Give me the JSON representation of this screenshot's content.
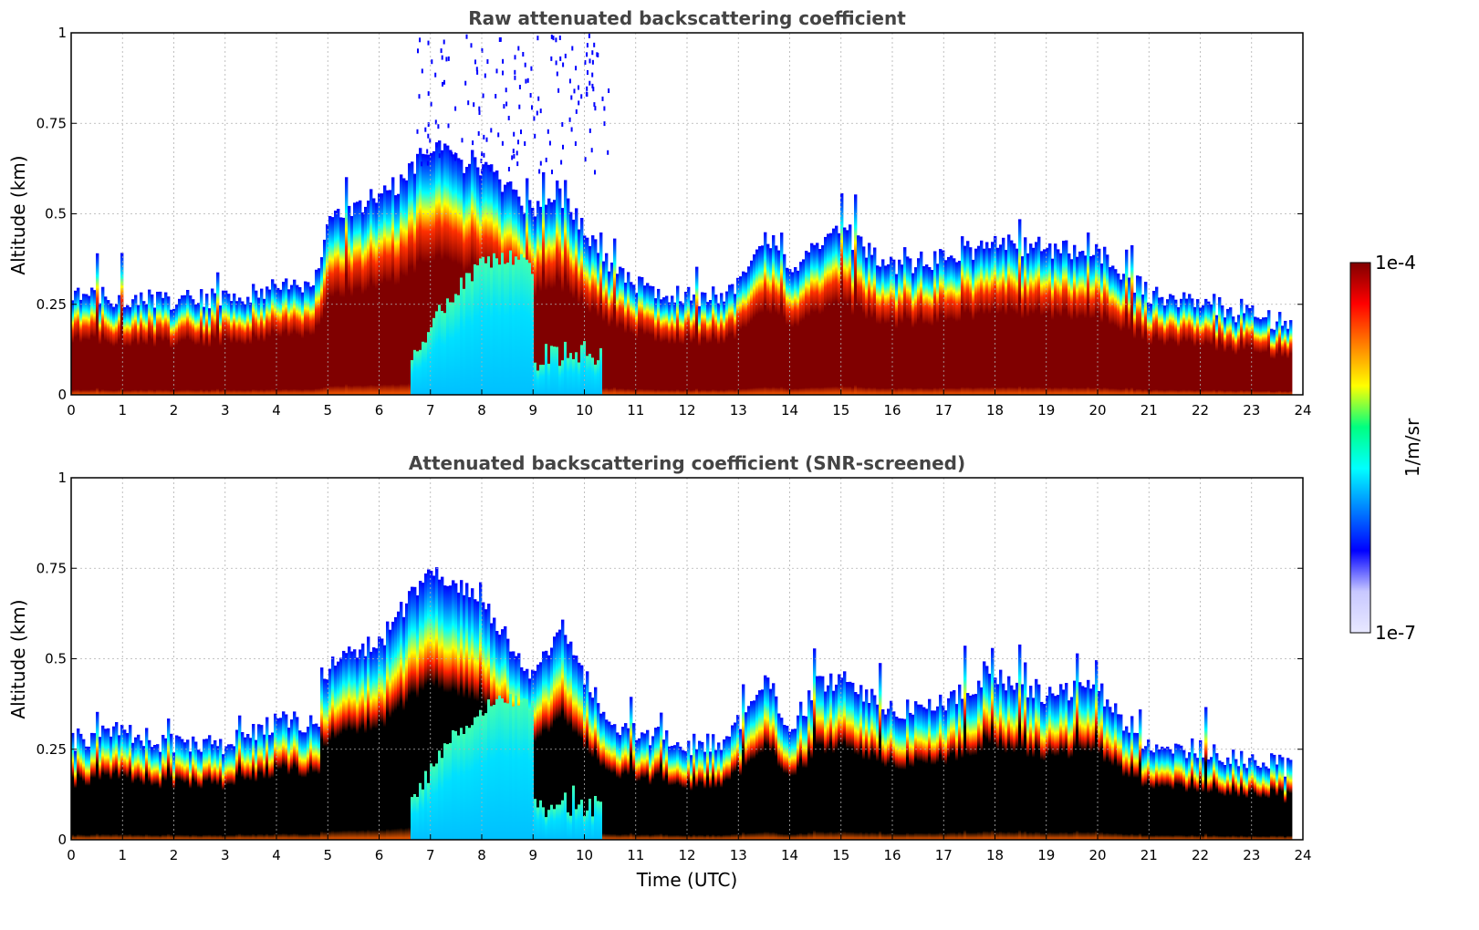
{
  "figure": {
    "xlabel": "Time (UTC)",
    "colorbar": {
      "label": "1/m/sr",
      "max_label": "1e-4",
      "min_label": "1e-7",
      "scale": "log",
      "range": [
        1e-07,
        0.0001
      ],
      "colormap": [
        "#e8e8ff",
        "#c8c8ff",
        "#0000ff",
        "#0080ff",
        "#00ffff",
        "#00ff80",
        "#ffff00",
        "#ff8000",
        "#ff0000",
        "#800000"
      ]
    }
  },
  "chart_data": [
    {
      "type": "heatmap",
      "title": "Raw attenuated backscattering coefficient",
      "xlabel": "",
      "ylabel": "Altitude (km)",
      "xlim": [
        0,
        24
      ],
      "ylim": [
        0,
        1
      ],
      "x_ticks": [
        "0",
        "1",
        "2",
        "3",
        "4",
        "5",
        "6",
        "7",
        "8",
        "9",
        "10",
        "11",
        "12",
        "13",
        "14",
        "15",
        "16",
        "17",
        "18",
        "19",
        "20",
        "21",
        "22",
        "23",
        "24"
      ],
      "y_ticks": [
        "0",
        "0.25",
        "0.5",
        "0.75",
        "1"
      ],
      "grid": true,
      "data_end_hour": 23.75,
      "boundary_layer_top_km": {
        "hours": [
          0,
          1,
          2,
          3,
          4,
          4.8,
          5,
          6,
          6.5,
          7,
          7.5,
          8,
          8.5,
          9,
          9.5,
          10,
          10.5,
          11,
          12,
          12.8,
          13.5,
          14,
          14.5,
          15,
          16,
          17,
          18,
          19,
          20,
          20.5,
          21,
          22,
          23,
          23.75
        ],
        "values": [
          0.27,
          0.27,
          0.26,
          0.27,
          0.3,
          0.32,
          0.5,
          0.55,
          0.6,
          0.7,
          0.65,
          0.62,
          0.58,
          0.5,
          0.55,
          0.45,
          0.35,
          0.3,
          0.27,
          0.28,
          0.45,
          0.35,
          0.4,
          0.45,
          0.35,
          0.38,
          0.42,
          0.4,
          0.4,
          0.33,
          0.28,
          0.25,
          0.22,
          0.2
        ]
      }
    },
    {
      "type": "heatmap",
      "title": "Attenuated backscattering coefficient (SNR-screened)",
      "xlabel": "Time (UTC)",
      "ylabel": "Altitude (km)",
      "xlim": [
        0,
        24
      ],
      "ylim": [
        0,
        1
      ],
      "x_ticks": [
        "0",
        "1",
        "2",
        "3",
        "4",
        "5",
        "6",
        "7",
        "8",
        "9",
        "10",
        "11",
        "12",
        "13",
        "14",
        "15",
        "16",
        "17",
        "18",
        "19",
        "20",
        "21",
        "22",
        "23",
        "24"
      ],
      "y_ticks": [
        "0",
        "0.25",
        "0.5",
        "0.75",
        "1"
      ],
      "grid": true,
      "data_end_hour": 23.75,
      "saturated_color": "#000000",
      "boundary_layer_top_km": {
        "hours": [
          0,
          1,
          2,
          3,
          4,
          4.8,
          5,
          6,
          6.5,
          7,
          7.5,
          8,
          8.5,
          9,
          9.5,
          10,
          10.5,
          11,
          12,
          12.8,
          13.5,
          14,
          14.5,
          15,
          16,
          17,
          18,
          19,
          20,
          20.5,
          21,
          22,
          23,
          23.75
        ],
        "values": [
          0.27,
          0.3,
          0.26,
          0.26,
          0.33,
          0.32,
          0.5,
          0.55,
          0.65,
          0.75,
          0.7,
          0.65,
          0.55,
          0.45,
          0.6,
          0.45,
          0.3,
          0.3,
          0.26,
          0.28,
          0.46,
          0.3,
          0.42,
          0.45,
          0.35,
          0.38,
          0.45,
          0.4,
          0.42,
          0.3,
          0.26,
          0.25,
          0.22,
          0.2
        ]
      }
    }
  ]
}
